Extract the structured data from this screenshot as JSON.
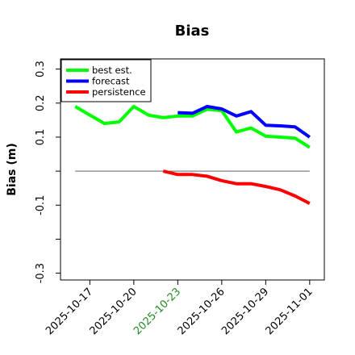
{
  "chart_data": {
    "type": "line",
    "title": "Bias",
    "xlabel": "",
    "ylabel": "Bias (m)",
    "ylim": [
      -0.32,
      0.33
    ],
    "xlim": [
      "2025-10-15",
      "2025-11-02"
    ],
    "yticks": [
      -0.3,
      -0.2,
      -0.1,
      0.0,
      0.1,
      0.2,
      0.3
    ],
    "ytick_labels": [
      "-0.3",
      "",
      "-0.1",
      "",
      "0.1",
      "0.2",
      "0.3"
    ],
    "xticks": [
      "2025-10-17",
      "2025-10-20",
      "2025-10-23",
      "2025-10-26",
      "2025-10-29",
      "2025-11-01"
    ],
    "xtick_labels": [
      "2025-10-17",
      "2025-10-20",
      "2025-10-23",
      "2025-10-26",
      "2025-10-29",
      "2025-11-01"
    ],
    "highlight_tick": "2025-10-23",
    "highlight_color": "#228B22",
    "grid": false,
    "legend": "top-left",
    "reference_line": {
      "x": [
        "2025-10-16",
        "2025-11-01"
      ],
      "y": 0.0,
      "color": "#808080"
    },
    "series": [
      {
        "name": "best est.",
        "color": "#00ff00",
        "x": [
          "2025-10-16",
          "2025-10-17",
          "2025-10-18",
          "2025-10-19",
          "2025-10-20",
          "2025-10-21",
          "2025-10-22",
          "2025-10-23",
          "2025-10-24",
          "2025-10-25",
          "2025-10-26",
          "2025-10-27",
          "2025-10-28",
          "2025-10-29",
          "2025-10-30",
          "2025-10-31",
          "2025-11-01"
        ],
        "values": [
          0.19,
          0.165,
          0.14,
          0.145,
          0.19,
          0.165,
          0.157,
          0.162,
          0.162,
          0.182,
          0.178,
          0.115,
          0.127,
          0.103,
          0.1,
          0.097,
          0.07
        ]
      },
      {
        "name": "forecast",
        "color": "#0000ff",
        "x": [
          "2025-10-23",
          "2025-10-24",
          "2025-10-25",
          "2025-10-26",
          "2025-10-27",
          "2025-10-28",
          "2025-10-29",
          "2025-10-30",
          "2025-10-31",
          "2025-11-01"
        ],
        "values": [
          0.172,
          0.17,
          0.19,
          0.183,
          0.162,
          0.175,
          0.135,
          0.133,
          0.13,
          0.1
        ]
      },
      {
        "name": "persistence",
        "color": "#ff0000",
        "x": [
          "2025-10-22",
          "2025-10-23",
          "2025-10-24",
          "2025-10-25",
          "2025-10-26",
          "2025-10-27",
          "2025-10-28",
          "2025-10-29",
          "2025-10-30",
          "2025-10-31",
          "2025-11-01"
        ],
        "values": [
          0.0,
          -0.01,
          -0.01,
          -0.015,
          -0.028,
          -0.037,
          -0.037,
          -0.045,
          -0.055,
          -0.073,
          -0.095
        ]
      }
    ]
  }
}
